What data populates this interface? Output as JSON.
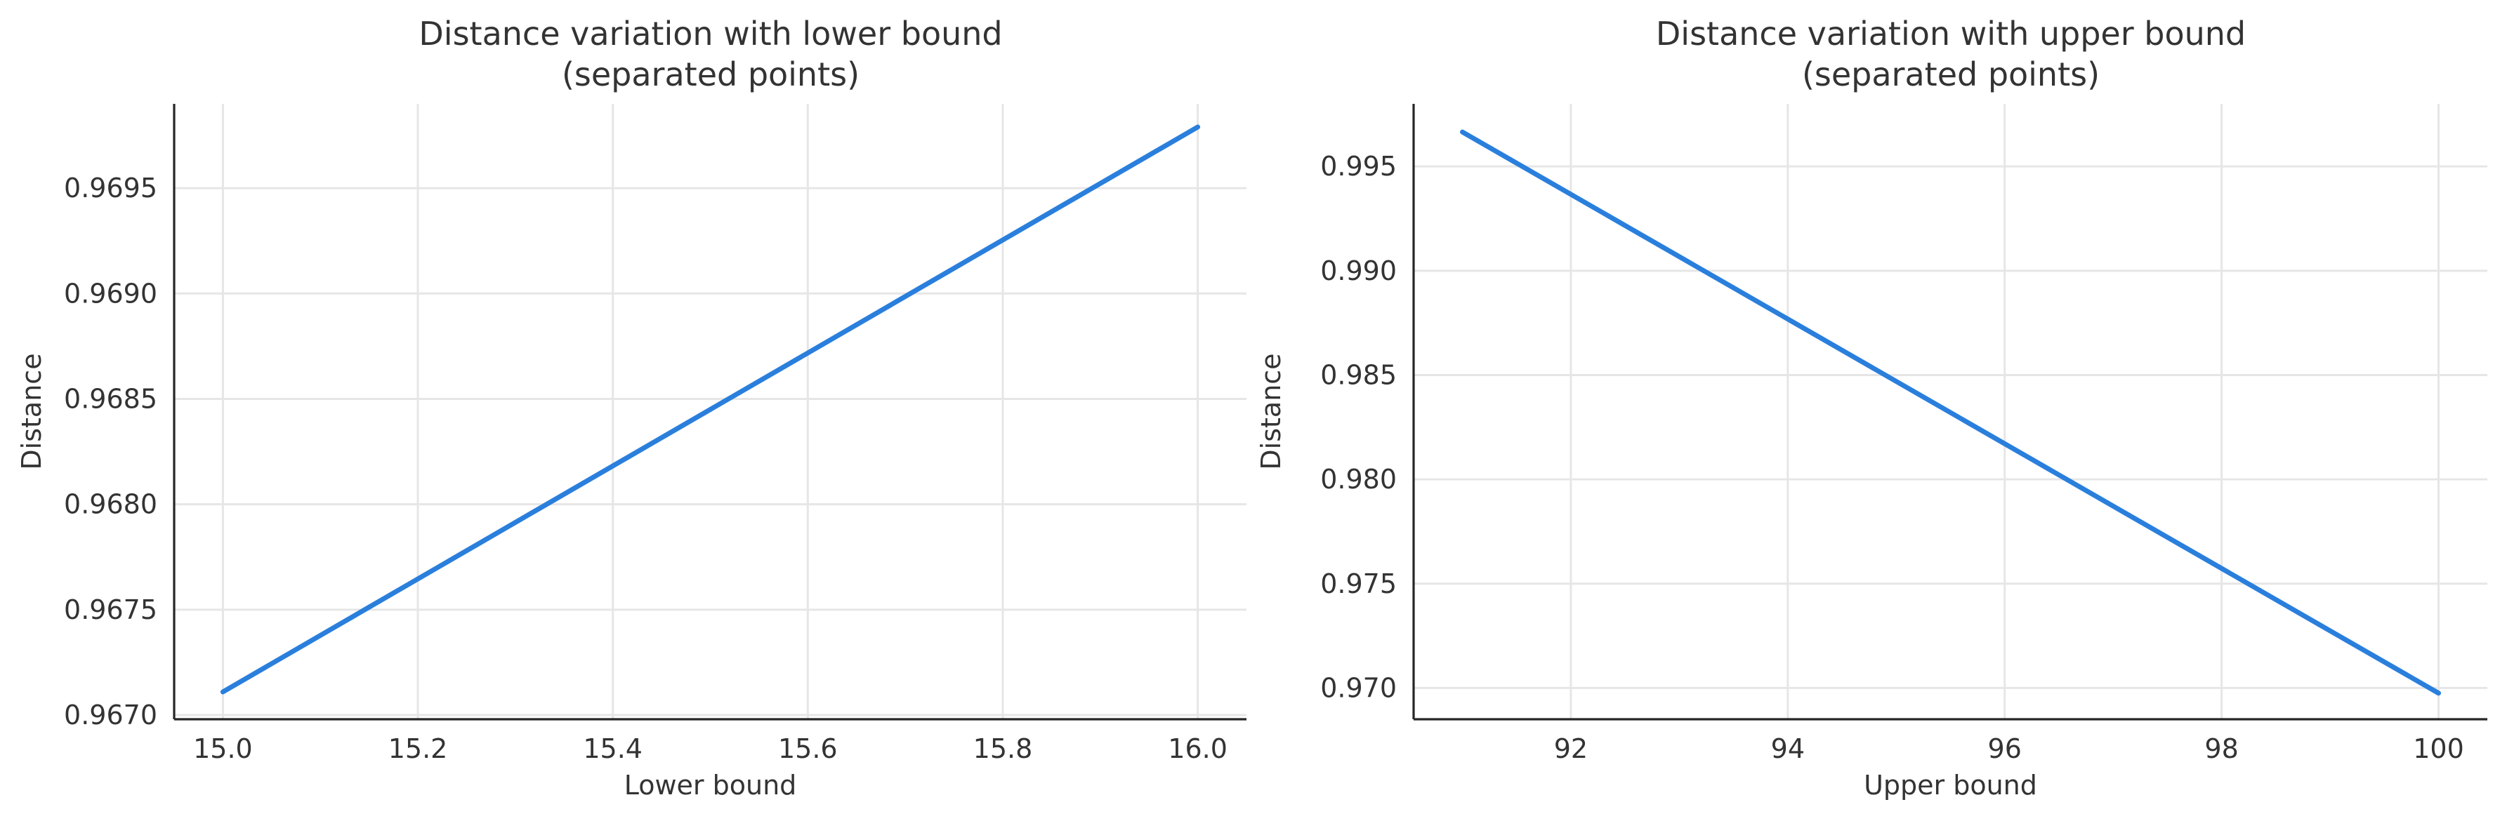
{
  "colors": {
    "line": "#2a7fdc",
    "grid": "#e6e6e6",
    "axis": "#262626",
    "text": "#333333"
  },
  "chart_data": [
    {
      "type": "line",
      "title": [
        "Distance variation with lower bound",
        "(separated points)"
      ],
      "xlabel": "Lower bound",
      "ylabel": "Distance",
      "xlim": [
        14.95,
        16.05
      ],
      "ylim": [
        0.96698,
        0.9699
      ],
      "xticks": [
        15.0,
        15.2,
        15.4,
        15.6,
        15.8,
        16.0
      ],
      "xtick_labels": [
        "15.0",
        "15.2",
        "15.4",
        "15.6",
        "15.8",
        "16.0"
      ],
      "yticks": [
        0.967,
        0.9675,
        0.968,
        0.9685,
        0.969,
        0.9695
      ],
      "ytick_labels": [
        "0.9670",
        "0.9675",
        "0.9680",
        "0.9685",
        "0.9690",
        "0.9695"
      ],
      "grid": true,
      "series": [
        {
          "x": [
            15.0,
            16.0
          ],
          "y": [
            0.96711,
            0.96979
          ]
        }
      ]
    },
    {
      "type": "line",
      "title": [
        "Distance variation with upper bound",
        "(separated points)"
      ],
      "xlabel": "Upper bound",
      "ylabel": "Distance",
      "xlim": [
        90.55,
        100.45
      ],
      "ylim": [
        0.9685,
        0.998
      ],
      "xticks": [
        92,
        94,
        96,
        98,
        100
      ],
      "xtick_labels": [
        "92",
        "94",
        "96",
        "98",
        "100"
      ],
      "yticks": [
        0.97,
        0.975,
        0.98,
        0.985,
        0.99,
        0.995
      ],
      "ytick_labels": [
        "0.970",
        "0.975",
        "0.980",
        "0.985",
        "0.990",
        "0.995"
      ],
      "grid": true,
      "series": [
        {
          "x": [
            91,
            100
          ],
          "y": [
            0.99665,
            0.96975
          ]
        }
      ]
    }
  ]
}
